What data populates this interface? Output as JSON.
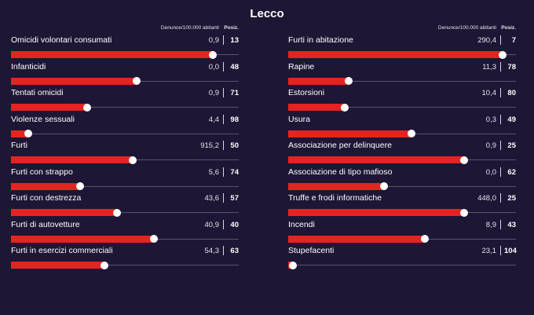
{
  "chart_data": {
    "type": "bar",
    "title": "Lecco",
    "value_header": "Denunce/100.000 abitanti",
    "rank_header": "Posiz.",
    "scale_max": 106,
    "note": "bar length encodes the province position: (106 - rank) / 105",
    "columns": [
      [
        {
          "label": "Omicidi volontari consumati",
          "value": "0,9",
          "rank": 13
        },
        {
          "label": "Infanticidi",
          "value": "0,0",
          "rank": 48
        },
        {
          "label": "Tentati omicidi",
          "value": "0,9",
          "rank": 71
        },
        {
          "label": "Violenze sessuali",
          "value": "4,4",
          "rank": 98
        },
        {
          "label": "Furti",
          "value": "915,2",
          "rank": 50
        },
        {
          "label": "Furti con strappo",
          "value": "5,6",
          "rank": 74
        },
        {
          "label": "Furti con destrezza",
          "value": "43,6",
          "rank": 57
        },
        {
          "label": "Furti di autovetture",
          "value": "40,9",
          "rank": 40
        },
        {
          "label": "Furti in esercizi commerciali",
          "value": "54,3",
          "rank": 63
        }
      ],
      [
        {
          "label": "Furti in abitazione",
          "value": "290,4",
          "rank": 7
        },
        {
          "label": "Rapine",
          "value": "11,3",
          "rank": 78
        },
        {
          "label": "Estorsioni",
          "value": "10,4",
          "rank": 80
        },
        {
          "label": "Usura",
          "value": "0,3",
          "rank": 49
        },
        {
          "label": "Associazione per delinquere",
          "value": "0,9",
          "rank": 25
        },
        {
          "label": "Associazione di tipo mafioso",
          "value": "0,0",
          "rank": 62
        },
        {
          "label": "Truffe e frodi informatiche",
          "value": "448,0",
          "rank": 25
        },
        {
          "label": "Incendi",
          "value": "8,9",
          "rank": 43
        },
        {
          "label": "Stupefacenti",
          "value": "23,1",
          "rank": 104
        }
      ]
    ],
    "colors": {
      "background": "#1e1635",
      "bar": "#e42421",
      "knob": "#ffffff",
      "track": "#5a5272"
    }
  }
}
